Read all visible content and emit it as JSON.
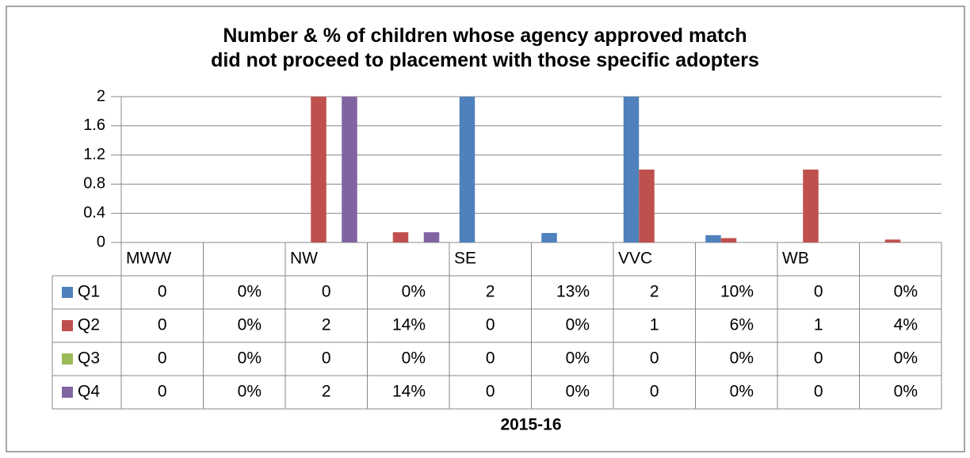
{
  "chart_data": {
    "type": "bar",
    "title": "Number & % of children whose agency approved match\ndid not proceed to placement with those specific adopters",
    "x_label": "2015-16",
    "categories": [
      "MWW",
      null,
      "NW",
      null,
      "SE",
      null,
      "VVC",
      null,
      "WB",
      null
    ],
    "series": [
      {
        "name": "Q1",
        "color": "#4f81bd",
        "values": [
          0,
          0,
          0,
          0,
          2,
          0.13,
          2,
          0.1,
          0,
          0
        ],
        "value_labels": [
          "0",
          "0%",
          "0",
          "0%",
          "2",
          "13%",
          "2",
          "10%",
          "0",
          "0%"
        ]
      },
      {
        "name": "Q2",
        "color": "#c0504d",
        "values": [
          0,
          0,
          2,
          0.14,
          0,
          0,
          1,
          0.06,
          1,
          0.04
        ],
        "value_labels": [
          "0",
          "0%",
          "2",
          "14%",
          "0",
          "0%",
          "1",
          "6%",
          "1",
          "4%"
        ]
      },
      {
        "name": "Q3",
        "color": "#9bbb59",
        "values": [
          0,
          0,
          0,
          0,
          0,
          0,
          0,
          0,
          0,
          0
        ],
        "value_labels": [
          "0",
          "0%",
          "0",
          "0%",
          "0",
          "0%",
          "0",
          "0%",
          "0",
          "0%"
        ]
      },
      {
        "name": "Q4",
        "color": "#8064a2",
        "values": [
          0,
          0,
          2,
          0.14,
          0,
          0,
          0,
          0,
          0,
          0
        ],
        "value_labels": [
          "0",
          "0%",
          "2",
          "14%",
          "0",
          "0%",
          "0",
          "0%",
          "0",
          "0%"
        ]
      }
    ],
    "ylim": [
      0,
      2
    ],
    "yticks": [
      0,
      0.4,
      0.8,
      1.2,
      1.6,
      2
    ],
    "grid": true
  }
}
